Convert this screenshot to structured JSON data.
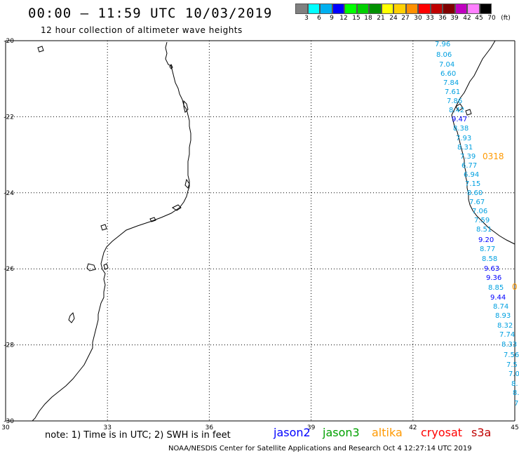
{
  "header": {
    "title": "00:00 – 11:59 UTC 10/03/2019",
    "subtitle": "12 hour collection of altimeter wave heights"
  },
  "color_scale": {
    "colors": [
      "#808080",
      "#00ffff",
      "#00b0f0",
      "#0000ff",
      "#00ff00",
      "#00d000",
      "#009000",
      "#ffff00",
      "#ffd000",
      "#ff9000",
      "#ff0000",
      "#c00000",
      "#800000",
      "#c000c0",
      "#ff80ff",
      "#000000"
    ],
    "labels": [
      "3",
      "6",
      "9",
      "12",
      "15",
      "18",
      "21",
      "24",
      "27",
      "30",
      "33",
      "36",
      "39",
      "42",
      "45",
      "70",
      "(ft)"
    ]
  },
  "axes": {
    "lon_labels": [
      "30",
      "33",
      "36",
      "39",
      "42",
      "45"
    ],
    "lat_labels": [
      "-20",
      "-22",
      "-24",
      "-26",
      "-28",
      "-30"
    ],
    "lon_range": [
      30,
      45
    ],
    "lat_range": [
      -30,
      -20
    ],
    "grid": true
  },
  "track_markers": [
    {
      "text": "0318",
      "color": "#ff9900"
    },
    {
      "text": "0",
      "color": "#ff9900"
    }
  ],
  "wave_readings": [
    {
      "text": "7.96",
      "color": "#00a0e0"
    },
    {
      "text": "8.06",
      "color": "#00a0e0"
    },
    {
      "text": "7.04",
      "color": "#00a0e0"
    },
    {
      "text": "6.60",
      "color": "#00a0e0"
    },
    {
      "text": "7.84",
      "color": "#00a0e0"
    },
    {
      "text": "7.61",
      "color": "#00a0e0"
    },
    {
      "text": "7.86",
      "color": "#00a0e0"
    },
    {
      "text": "8.42",
      "color": "#00a0e0"
    },
    {
      "text": "9.47",
      "color": "#0000ff"
    },
    {
      "text": "8.38",
      "color": "#00a0e0"
    },
    {
      "text": "7.93",
      "color": "#00a0e0"
    },
    {
      "text": "8.31",
      "color": "#00a0e0"
    },
    {
      "text": "7.39",
      "color": "#00a0e0"
    },
    {
      "text": "6.77",
      "color": "#00a0e0"
    },
    {
      "text": "6.94",
      "color": "#00a0e0"
    },
    {
      "text": "7.15",
      "color": "#00a0e0"
    },
    {
      "text": "8.60",
      "color": "#00a0e0"
    },
    {
      "text": "7.67",
      "color": "#00a0e0"
    },
    {
      "text": "7.06",
      "color": "#00a0e0"
    },
    {
      "text": "7.59",
      "color": "#00a0e0"
    },
    {
      "text": "8.51",
      "color": "#00a0e0"
    },
    {
      "text": "9.20",
      "color": "#0000ff"
    },
    {
      "text": "8.77",
      "color": "#00a0e0"
    },
    {
      "text": "8.58",
      "color": "#00a0e0"
    },
    {
      "text": "9.63",
      "color": "#0000ff"
    },
    {
      "text": "9.36",
      "color": "#0000ff"
    },
    {
      "text": "8.85",
      "color": "#00a0e0"
    },
    {
      "text": "9.44",
      "color": "#0000ff"
    },
    {
      "text": "8.74",
      "color": "#00a0e0"
    },
    {
      "text": "8.93",
      "color": "#00a0e0"
    },
    {
      "text": "8.32",
      "color": "#00a0e0"
    },
    {
      "text": "7.74",
      "color": "#00a0e0"
    },
    {
      "text": "8.33",
      "color": "#00a0e0"
    },
    {
      "text": "7.56",
      "color": "#00a0e0"
    },
    {
      "text": "7.5",
      "color": "#00a0e0"
    },
    {
      "text": "7.0",
      "color": "#00a0e0"
    },
    {
      "text": "8.",
      "color": "#00a0e0"
    },
    {
      "text": "8.",
      "color": "#00a0e0"
    },
    {
      "text": "7",
      "color": "#00a0e0"
    }
  ],
  "footer": {
    "note": "note:  1) Time is in UTC; 2) SWH is in feet",
    "satellites": [
      {
        "name": "jason2",
        "color": "#0000ff"
      },
      {
        "name": "jason3",
        "color": "#00a000"
      },
      {
        "name": "altika",
        "color": "#ff9900"
      },
      {
        "name": "cryosat",
        "color": "#ff0000"
      },
      {
        "name": "s3a",
        "color": "#c00000"
      }
    ],
    "credit": "NOAA/NESDIS Center for Satellite Applications and Research   Oct  4 12:27:14 UTC 2019"
  }
}
